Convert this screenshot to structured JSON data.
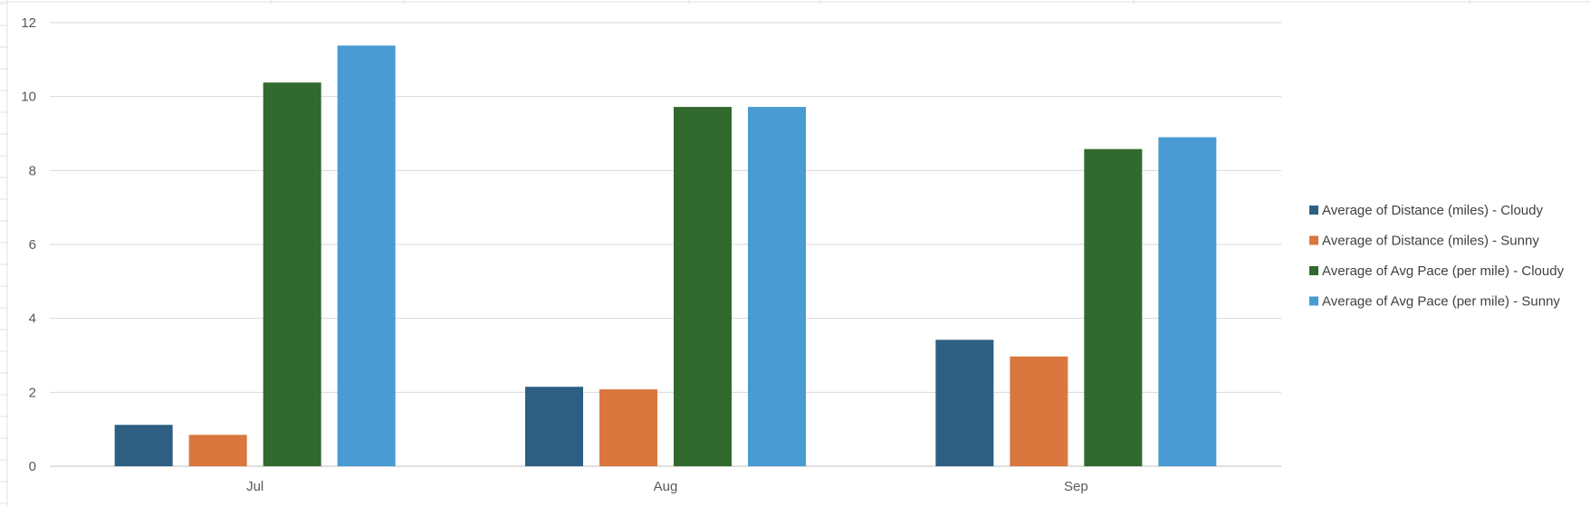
{
  "chart_data": {
    "type": "bar",
    "categories": [
      "Jul",
      "Aug",
      "Sep"
    ],
    "series": [
      {
        "name": "Average of Distance (miles) - Cloudy",
        "values": [
          1.12,
          2.15,
          3.42
        ],
        "color": "#2e5f82"
      },
      {
        "name": "Average of Distance (miles) - Sunny",
        "values": [
          0.85,
          2.08,
          2.97
        ],
        "color": "#d9773f"
      },
      {
        "name": "Average of Avg Pace (per mile) - Cloudy",
        "values": [
          10.38,
          9.72,
          8.58
        ],
        "color": "#32692e"
      },
      {
        "name": "Average of Avg Pace (per mile) - Sunny",
        "values": [
          11.38,
          9.72,
          8.9
        ],
        "color": "#4a9bd3"
      }
    ],
    "yticks": [
      "0",
      "2",
      "4",
      "6",
      "8",
      "10",
      "12"
    ],
    "ylim": [
      0,
      12
    ],
    "grid": true,
    "legend": "right",
    "title": "",
    "xlabel": "",
    "ylabel": ""
  },
  "colors": {
    "gridline": "#d9d9d9",
    "axis": "#bfbfbf",
    "sheet_grid": "#e1e1e1"
  }
}
